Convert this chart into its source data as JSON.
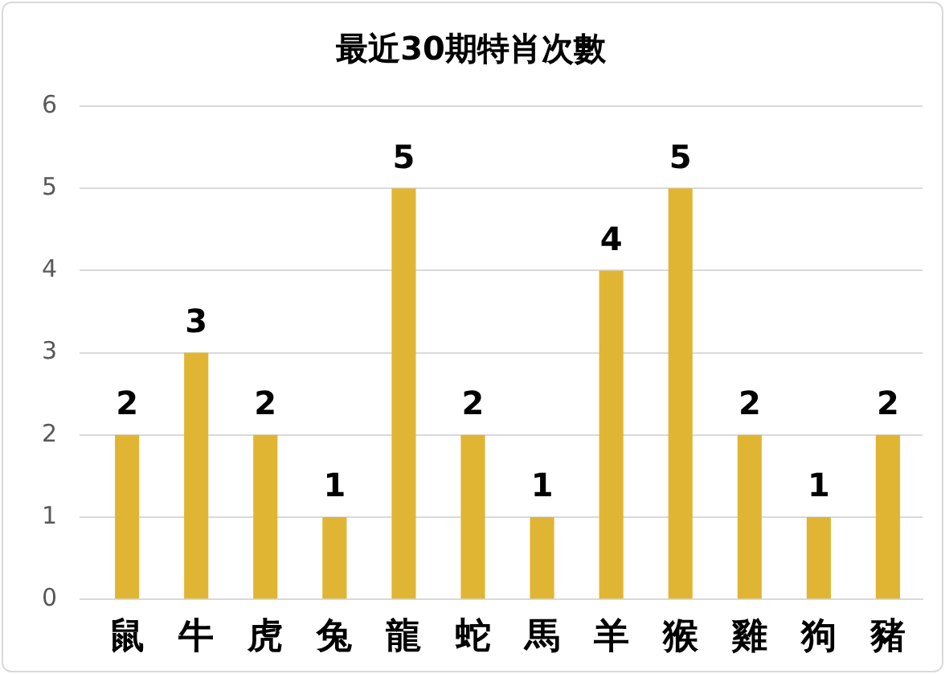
{
  "chart_data": {
    "type": "bar",
    "title": "最近30期特肖次數",
    "categories": [
      "鼠",
      "牛",
      "虎",
      "兔",
      "龍",
      "蛇",
      "馬",
      "羊",
      "猴",
      "雞",
      "狗",
      "豬"
    ],
    "values": [
      2,
      3,
      2,
      1,
      5,
      2,
      1,
      4,
      5,
      2,
      1,
      2
    ],
    "color": "#e0b533",
    "ylim": [
      0,
      6
    ],
    "yticks": [
      0,
      1,
      2,
      3,
      4,
      5,
      6
    ],
    "grid": "y",
    "data_labels": true,
    "legend": false
  }
}
